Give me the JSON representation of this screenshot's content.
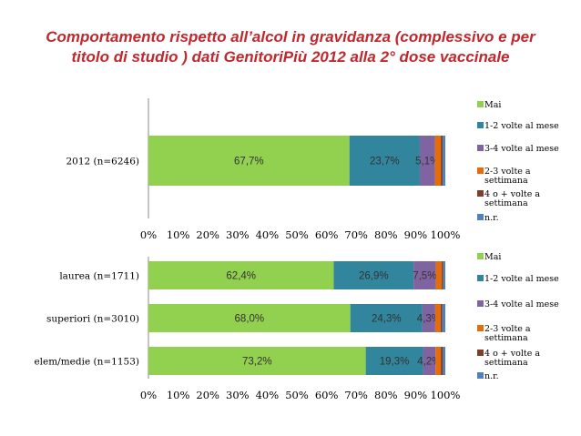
{
  "title": {
    "line1": "Comportamento rispetto all’alcol in gravidanza (complessivo e per",
    "line2": "titolo di studio ) dati GenitoriPiù 2012 alla 2° dose vaccinale"
  },
  "colors": {
    "title": "#c0282d",
    "series": [
      "#92d050",
      "#31859c",
      "#8064a2",
      "#e46c0a",
      "#7b3f2a",
      "#4f81bd"
    ]
  },
  "chart_data": [
    {
      "type": "bar",
      "orientation": "horizontal",
      "stacked": true,
      "categories": [
        "2012 (n=6246)"
      ],
      "series": [
        {
          "name": "Mai",
          "values": [
            67.7
          ]
        },
        {
          "name": "1-2 volte al mese",
          "values": [
            23.7
          ]
        },
        {
          "name": "3-4 volte al mese",
          "values": [
            5.1
          ]
        },
        {
          "name": "2-3 volte a settimana",
          "values": [
            2.0
          ]
        },
        {
          "name": "4 o + volte a settimana",
          "values": [
            0.6
          ]
        },
        {
          "name": "n.r.",
          "values": [
            0.9
          ]
        }
      ],
      "data_labels": [
        [
          "67,7%",
          "23,7%",
          "5,1%"
        ]
      ],
      "xticks": [
        "0%",
        "10%",
        "20%",
        "30%",
        "40%",
        "50%",
        "60%",
        "70%",
        "80%",
        "90%",
        "100%"
      ],
      "xlim": [
        0,
        100
      ],
      "legend_position": "right"
    },
    {
      "type": "bar",
      "orientation": "horizontal",
      "stacked": true,
      "categories": [
        "laurea (n=1711)",
        "superiori (n=3010)",
        "elem/medie (n=1153)"
      ],
      "series": [
        {
          "name": "Mai",
          "values": [
            62.4,
            68.0,
            73.2
          ]
        },
        {
          "name": "1-2 volte al mese",
          "values": [
            26.9,
            24.3,
            19.3
          ]
        },
        {
          "name": "3-4 volte al mese",
          "values": [
            7.5,
            4.3,
            4.2
          ]
        },
        {
          "name": "2-3 volte a settimana",
          "values": [
            2.0,
            1.8,
            1.8
          ]
        },
        {
          "name": "4 o + volte a settimana",
          "values": [
            0.5,
            0.6,
            0.7
          ]
        },
        {
          "name": "n.r.",
          "values": [
            0.7,
            1.0,
            0.8
          ]
        }
      ],
      "data_labels": [
        [
          "62,4%",
          "26,9%",
          "7,5%"
        ],
        [
          "68,0%",
          "24,3%",
          "4,3%"
        ],
        [
          "73,2%",
          "19,3%",
          "4,2%"
        ]
      ],
      "xticks": [
        "0%",
        "10%",
        "20%",
        "30%",
        "40%",
        "50%",
        "60%",
        "70%",
        "80%",
        "90%",
        "100%"
      ],
      "xlim": [
        0,
        100
      ],
      "legend_position": "right"
    }
  ]
}
